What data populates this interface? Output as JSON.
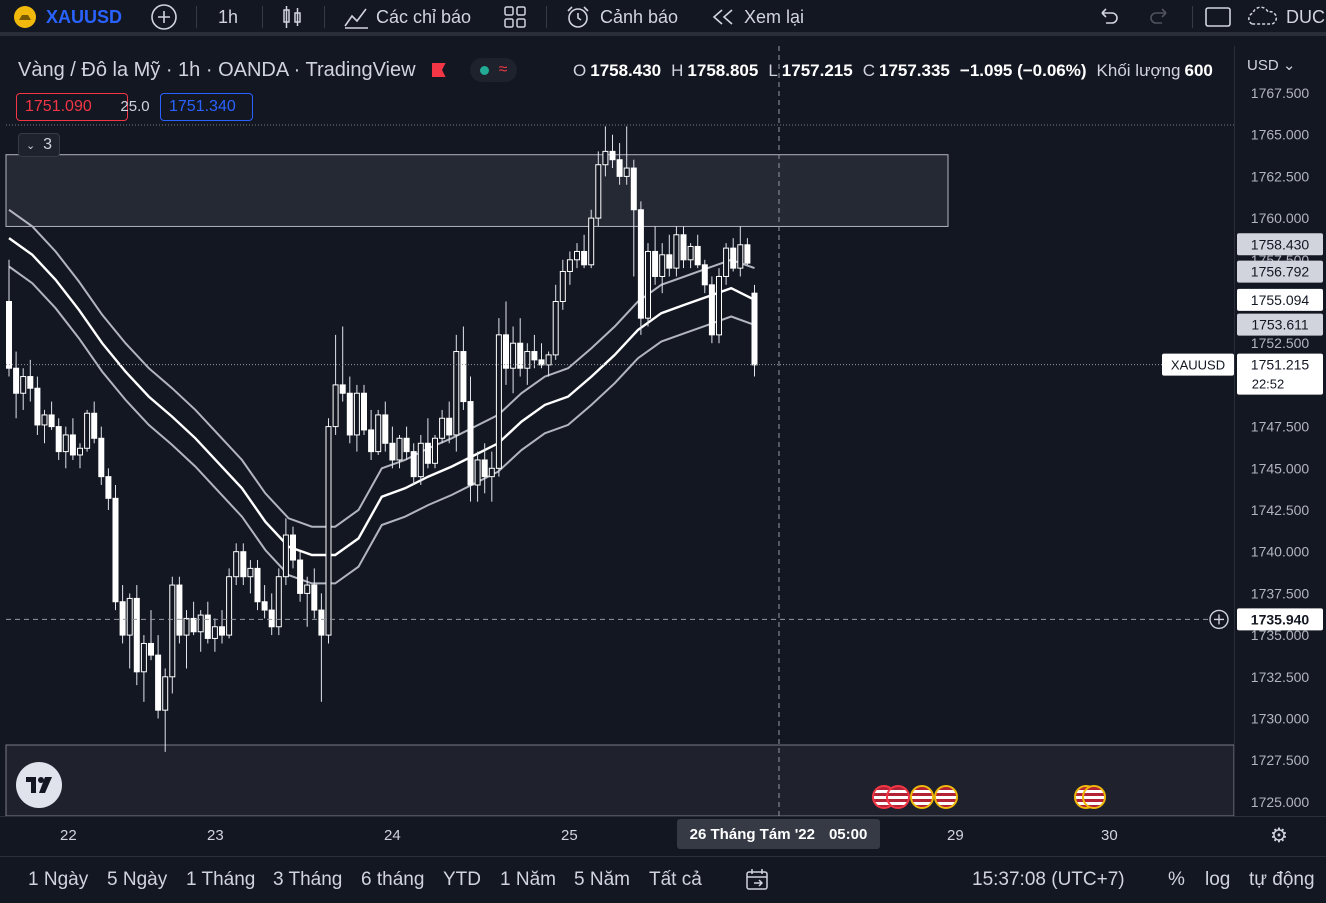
{
  "topbar": {
    "symbol": "XAUUSD",
    "interval": "1h",
    "indicators_label": "Các chỉ báo",
    "alert_label": "Cảnh báo",
    "replay_label": "Xem lại",
    "user": "DUC"
  },
  "legend": {
    "title": "Vàng / Đô la Mỹ · 1h · OANDA · TradingView",
    "open_label": "O",
    "open": "1758.430",
    "high_label": "H",
    "high": "1758.805",
    "low_label": "L",
    "low": "1757.215",
    "close_label": "C",
    "close": "1757.335",
    "change": "−1.095 (−0.06%)",
    "volume_label": "Khối lượng",
    "volume": "600",
    "sell_price": "1751.090",
    "spread": "25.0",
    "buy_price": "1751.340",
    "collapsed_count": "3"
  },
  "axis": {
    "currency": "USD",
    "crosshair_price": "1735.940",
    "last_symbol": "XAUUSD",
    "last_price": "1751.215",
    "countdown": "22:52",
    "badges": [
      "1758.430",
      "1756.792",
      "1755.094",
      "1753.611"
    ],
    "date_labels": [
      "22",
      "23",
      "24",
      "25",
      "29",
      "30"
    ],
    "crosshair_date": "26 Tháng Tám '22",
    "crosshair_time": "05:00"
  },
  "bottombar": {
    "ranges": [
      "1 Ngày",
      "5 Ngày",
      "1 Tháng",
      "3 Tháng",
      "6 tháng",
      "YTD",
      "1 Năm",
      "5 Năm",
      "Tất cả"
    ],
    "clock": "15:37:08 (UTC+7)",
    "percent": "%",
    "log": "log",
    "auto": "tự động"
  },
  "chart_data": {
    "type": "candlestick",
    "title": "Vàng / Đô la Mỹ · 1h · OANDA",
    "ylim": [
      1724,
      1768
    ],
    "yticks": [
      1767.5,
      1765,
      1762.5,
      1760,
      1757.5,
      1755,
      1752.5,
      1750,
      1747.5,
      1745,
      1742.5,
      1740,
      1737.5,
      1735,
      1732.5,
      1730,
      1727.5,
      1725
    ],
    "ytick_labels": [
      "1767.500",
      "1765.000",
      "1762.500",
      "1760.000",
      "1757.500",
      "1755.000",
      "1752.500",
      "1750.000",
      "1747.500",
      "1745.000",
      "1742.500",
      "1740.000",
      "1737.500",
      "1735.000",
      "1732.500",
      "1730.000",
      "1727.500",
      "1725.000"
    ],
    "zone": {
      "top": 1763.8,
      "bottom": 1759.5
    },
    "candles": [
      [
        1755.0,
        1757.5,
        1750.5,
        1751.0
      ],
      [
        1751.0,
        1752.0,
        1748.0,
        1749.5
      ],
      [
        1749.5,
        1751.0,
        1748.5,
        1750.5
      ],
      [
        1750.5,
        1751.5,
        1749.0,
        1749.8
      ],
      [
        1749.8,
        1750.5,
        1747.0,
        1747.6
      ],
      [
        1747.6,
        1748.5,
        1746.5,
        1748.2
      ],
      [
        1748.2,
        1749.0,
        1747.3,
        1747.5
      ],
      [
        1747.5,
        1748.0,
        1745.5,
        1746.0
      ],
      [
        1746.0,
        1747.5,
        1745.0,
        1747.0
      ],
      [
        1747.0,
        1748.0,
        1745.5,
        1745.8
      ],
      [
        1745.8,
        1746.5,
        1745.0,
        1746.2
      ],
      [
        1746.2,
        1748.5,
        1746.0,
        1748.3
      ],
      [
        1748.3,
        1749.0,
        1746.5,
        1746.8
      ],
      [
        1746.8,
        1747.5,
        1744.0,
        1744.5
      ],
      [
        1744.5,
        1745.0,
        1742.5,
        1743.2
      ],
      [
        1743.2,
        1744.0,
        1736.5,
        1737.0
      ],
      [
        1737.0,
        1738.0,
        1734.5,
        1735.0
      ],
      [
        1735.0,
        1737.5,
        1733.0,
        1737.2
      ],
      [
        1737.2,
        1738.0,
        1732.0,
        1732.8
      ],
      [
        1732.8,
        1735.0,
        1731.0,
        1734.5
      ],
      [
        1734.5,
        1736.5,
        1733.5,
        1733.8
      ],
      [
        1733.8,
        1735.0,
        1730.0,
        1730.5
      ],
      [
        1730.5,
        1733.0,
        1728.0,
        1732.5
      ],
      [
        1732.5,
        1738.5,
        1731.5,
        1738.0
      ],
      [
        1738.0,
        1738.5,
        1734.5,
        1735.0
      ],
      [
        1735.0,
        1736.5,
        1733.0,
        1736.0
      ],
      [
        1736.0,
        1737.0,
        1735.0,
        1735.2
      ],
      [
        1735.2,
        1736.5,
        1734.0,
        1736.2
      ],
      [
        1736.2,
        1737.0,
        1734.5,
        1734.8
      ],
      [
        1734.8,
        1736.0,
        1734.0,
        1735.5
      ],
      [
        1735.5,
        1736.5,
        1734.5,
        1735.0
      ],
      [
        1735.0,
        1739.0,
        1734.8,
        1738.5
      ],
      [
        1738.5,
        1740.5,
        1738.0,
        1740.0
      ],
      [
        1740.0,
        1740.5,
        1738.0,
        1738.5
      ],
      [
        1738.5,
        1739.5,
        1737.5,
        1739.0
      ],
      [
        1739.0,
        1739.5,
        1736.5,
        1737.0
      ],
      [
        1737.0,
        1738.0,
        1736.0,
        1736.5
      ],
      [
        1736.5,
        1737.5,
        1735.0,
        1735.5
      ],
      [
        1735.5,
        1739.0,
        1735.0,
        1738.5
      ],
      [
        1738.5,
        1742.0,
        1738.0,
        1741.0
      ],
      [
        1741.0,
        1741.5,
        1739.0,
        1739.5
      ],
      [
        1739.5,
        1740.0,
        1737.0,
        1737.5
      ],
      [
        1737.5,
        1738.5,
        1735.5,
        1738.0
      ],
      [
        1738.0,
        1739.0,
        1736.0,
        1736.5
      ],
      [
        1736.5,
        1737.5,
        1731.0,
        1735.0
      ],
      [
        1735.0,
        1748.0,
        1734.5,
        1747.5
      ],
      [
        1747.5,
        1753.0,
        1747.0,
        1750.0
      ],
      [
        1750.0,
        1753.5,
        1749.0,
        1749.5
      ],
      [
        1749.5,
        1750.5,
        1746.5,
        1747.0
      ],
      [
        1747.0,
        1750.0,
        1746.0,
        1749.5
      ],
      [
        1749.5,
        1750.0,
        1747.0,
        1747.3
      ],
      [
        1747.3,
        1748.5,
        1745.5,
        1746.0
      ],
      [
        1746.0,
        1748.5,
        1745.8,
        1748.2
      ],
      [
        1748.2,
        1749.0,
        1746.0,
        1746.5
      ],
      [
        1746.5,
        1747.5,
        1745.0,
        1745.5
      ],
      [
        1745.5,
        1747.0,
        1745.0,
        1746.8
      ],
      [
        1746.8,
        1747.5,
        1745.5,
        1746.0
      ],
      [
        1746.0,
        1746.5,
        1744.0,
        1744.5
      ],
      [
        1744.5,
        1747.0,
        1744.0,
        1746.5
      ],
      [
        1746.5,
        1748.0,
        1745.0,
        1745.3
      ],
      [
        1745.3,
        1747.0,
        1745.0,
        1746.8
      ],
      [
        1746.8,
        1748.5,
        1746.5,
        1748.0
      ],
      [
        1748.0,
        1749.0,
        1746.5,
        1747.0
      ],
      [
        1747.0,
        1753.0,
        1746.0,
        1752.0
      ],
      [
        1752.0,
        1753.5,
        1748.5,
        1749.0
      ],
      [
        1749.0,
        1750.5,
        1743.0,
        1744.0
      ],
      [
        1744.0,
        1746.0,
        1743.0,
        1745.5
      ],
      [
        1745.5,
        1746.5,
        1743.5,
        1744.5
      ],
      [
        1744.5,
        1746.0,
        1743.0,
        1745.0
      ],
      [
        1745.0,
        1754.0,
        1744.5,
        1753.0
      ],
      [
        1753.0,
        1755.0,
        1750.0,
        1751.0
      ],
      [
        1751.0,
        1753.5,
        1749.5,
        1752.5
      ],
      [
        1752.5,
        1754.0,
        1750.5,
        1751.0
      ],
      [
        1751.0,
        1752.5,
        1750.0,
        1752.0
      ],
      [
        1752.0,
        1753.0,
        1751.0,
        1751.5
      ],
      [
        1751.5,
        1752.5,
        1751.0,
        1751.2
      ],
      [
        1751.2,
        1752.0,
        1750.5,
        1751.8
      ],
      [
        1751.8,
        1756.0,
        1751.5,
        1755.0
      ],
      [
        1755.0,
        1757.5,
        1754.5,
        1756.8
      ],
      [
        1756.8,
        1758.0,
        1756.0,
        1757.5
      ],
      [
        1757.5,
        1758.5,
        1757.0,
        1758.0
      ],
      [
        1758.0,
        1759.0,
        1757.0,
        1757.2
      ],
      [
        1757.2,
        1760.5,
        1757.0,
        1760.0
      ],
      [
        1760.0,
        1764.0,
        1759.5,
        1763.2
      ],
      [
        1763.2,
        1765.5,
        1762.5,
        1764.0
      ],
      [
        1764.0,
        1765.0,
        1763.0,
        1763.5
      ],
      [
        1763.5,
        1764.5,
        1762.0,
        1762.5
      ],
      [
        1762.5,
        1765.5,
        1762.0,
        1763.0
      ],
      [
        1763.0,
        1763.5,
        1756.5,
        1760.5
      ],
      [
        1760.5,
        1761.0,
        1753.0,
        1754.0
      ],
      [
        1754.0,
        1758.5,
        1753.5,
        1758.0
      ],
      [
        1758.0,
        1759.5,
        1756.0,
        1756.5
      ],
      [
        1756.5,
        1758.5,
        1755.5,
        1757.8
      ],
      [
        1757.8,
        1759.0,
        1756.5,
        1757.0
      ],
      [
        1757.0,
        1759.5,
        1756.5,
        1759.0
      ],
      [
        1759.0,
        1759.5,
        1757.0,
        1757.5
      ],
      [
        1757.5,
        1758.5,
        1757.0,
        1758.3
      ],
      [
        1758.3,
        1759.0,
        1757.0,
        1757.2
      ],
      [
        1757.2,
        1757.5,
        1755.5,
        1756.0
      ],
      [
        1756.0,
        1756.5,
        1752.5,
        1753.0
      ],
      [
        1753.0,
        1757.0,
        1752.5,
        1756.5
      ],
      [
        1756.5,
        1758.5,
        1756.0,
        1758.2
      ],
      [
        1758.2,
        1758.8,
        1756.8,
        1757.0
      ],
      [
        1757.0,
        1759.5,
        1756.5,
        1758.4
      ],
      [
        1758.4,
        1758.8,
        1757.2,
        1757.3
      ],
      [
        1755.5,
        1756.0,
        1750.5,
        1751.2
      ]
    ],
    "series": [
      {
        "name": "",
        "values": [
          1760.5,
          1759.5,
          1758.0,
          1756.2,
          1754.2,
          1752.5,
          1751.0,
          1749.8,
          1748.5,
          1747.0,
          1745.5,
          1743.5,
          1742.0,
          1741.5,
          1741.5,
          1742.5,
          1745.0,
          1745.5,
          1746.2,
          1746.8,
          1747.5,
          1748.2,
          1749.5,
          1750.5,
          1751.0,
          1752.2,
          1753.5,
          1755.0,
          1756.0,
          1756.5,
          1757.0,
          1757.5,
          1757.0
        ]
      },
      {
        "name": "",
        "values": [
          1758.8,
          1757.8,
          1756.3,
          1754.5,
          1752.5,
          1750.8,
          1749.3,
          1748.1,
          1746.8,
          1745.3,
          1743.8,
          1741.8,
          1740.3,
          1739.8,
          1739.8,
          1740.8,
          1743.3,
          1743.8,
          1744.5,
          1745.1,
          1745.8,
          1746.5,
          1747.8,
          1748.8,
          1749.3,
          1750.5,
          1751.8,
          1753.3,
          1754.3,
          1754.8,
          1755.3,
          1755.8,
          1755.1
        ]
      },
      {
        "name": "",
        "values": [
          1757.1,
          1756.1,
          1754.6,
          1752.8,
          1750.8,
          1749.1,
          1747.6,
          1746.4,
          1745.1,
          1743.6,
          1742.1,
          1740.1,
          1738.6,
          1738.1,
          1738.1,
          1739.1,
          1741.6,
          1742.1,
          1742.8,
          1743.4,
          1744.1,
          1744.8,
          1746.1,
          1747.1,
          1747.6,
          1748.8,
          1750.1,
          1751.6,
          1752.6,
          1753.1,
          1753.6,
          1754.1,
          1753.6
        ]
      }
    ]
  }
}
